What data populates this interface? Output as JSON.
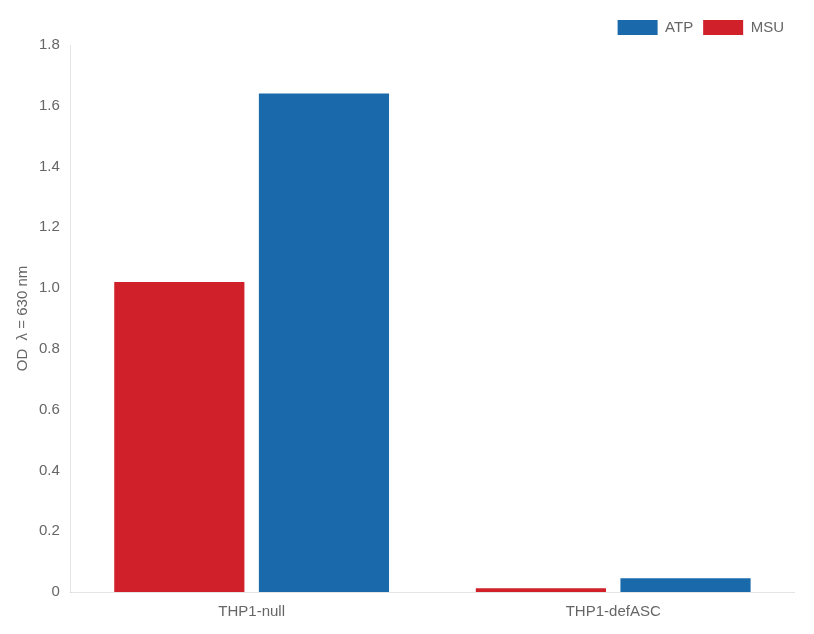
{
  "chart_data": {
    "type": "bar",
    "categories": [
      "THP1-null",
      "THP1-defASC"
    ],
    "series": [
      {
        "name": "MSU",
        "color": "#d0202a",
        "values": [
          1.02,
          0.012
        ]
      },
      {
        "name": "ATP",
        "color": "#1a6aab",
        "values": [
          1.64,
          0.045
        ]
      }
    ],
    "ylabel": "OD  λ = 630 nm",
    "ylim": [
      0,
      1.8
    ],
    "yticks": [
      0,
      0.2,
      0.4,
      0.6,
      0.8,
      {
        "value": 1.0,
        "label": "1.0"
      },
      1.2,
      1.4,
      1.6,
      1.8
    ],
    "grid": false,
    "legend": "upper right"
  }
}
